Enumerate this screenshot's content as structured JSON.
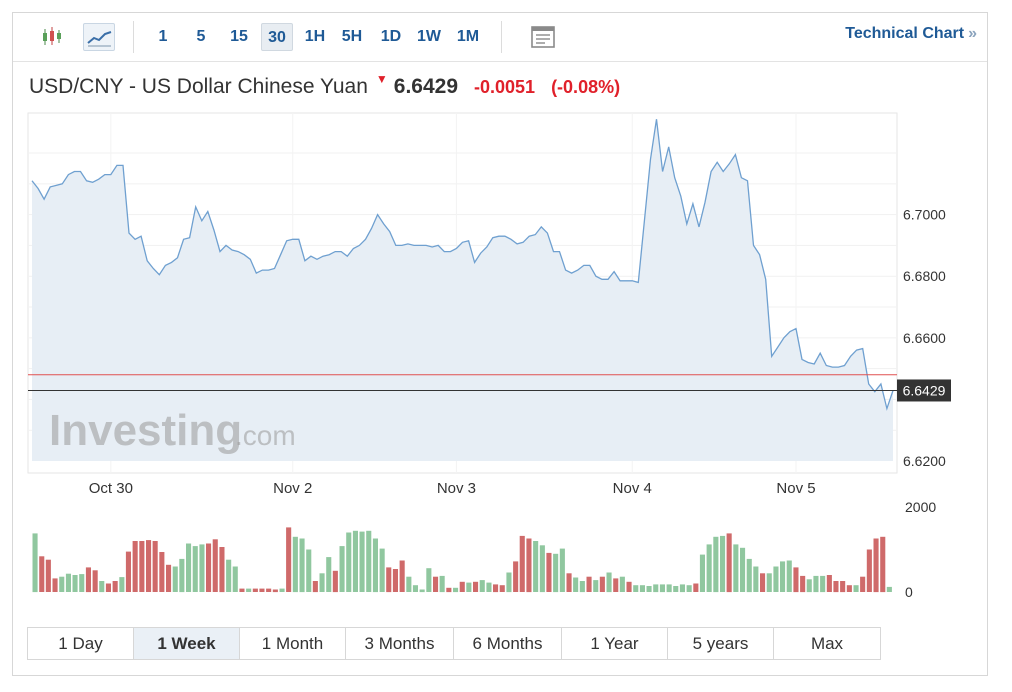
{
  "toolbar": {
    "chart_type_buttons": [
      {
        "name": "candlestick-chart-icon"
      },
      {
        "name": "line-chart-icon",
        "active": true
      }
    ],
    "timeframes": [
      {
        "label": "1"
      },
      {
        "label": "5"
      },
      {
        "label": "15"
      },
      {
        "label": "30",
        "active": true
      },
      {
        "label": "1H"
      },
      {
        "label": "5H"
      },
      {
        "label": "1D"
      },
      {
        "label": "1W"
      },
      {
        "label": "1M"
      }
    ],
    "technical_chart_label": "Technical Chart",
    "technical_chart_arrow": "»"
  },
  "header": {
    "title": "USD/CNY - US Dollar Chinese Yuan",
    "price": "6.6429",
    "change": "-0.0051",
    "change_pct": "(-0.08%)"
  },
  "colors": {
    "line": "#6fa0d0",
    "area": "#e7eef5",
    "up_volume": "#90c79f",
    "down_volume": "#cf6a6a",
    "prev_close_line": "#e05050",
    "current_price_line": "#333333",
    "price_tag_bg": "#333333",
    "accent_text": "#1f5a96",
    "negative": "#e0202a"
  },
  "chart_data": {
    "type": "area",
    "title": "USD/CNY - US Dollar Chinese Yuan",
    "xlabel": "",
    "ylabel": "",
    "x_ticks": [
      "Oct 30",
      "Nov 2",
      "Nov 3",
      "Nov 4",
      "Nov 5"
    ],
    "y_ticks": [
      "6.7000",
      "6.6800",
      "6.6600",
      "6.6200"
    ],
    "ylim": [
      6.62,
      6.733
    ],
    "grid": true,
    "current_price": 6.6429,
    "current_price_label": "6.6429",
    "previous_close": 6.648,
    "watermark": {
      "main": "Investing",
      "suffix": ".com"
    },
    "series": [
      {
        "values": [
          6.711,
          6.7085,
          6.705,
          6.709,
          6.7095,
          6.71,
          6.713,
          6.714,
          6.714,
          6.711,
          6.7105,
          6.7115,
          6.713,
          6.713,
          6.716,
          6.716,
          6.694,
          6.692,
          6.693,
          6.685,
          6.6825,
          6.6805,
          6.6835,
          6.6845,
          6.686,
          6.692,
          6.6925,
          6.7025,
          6.698,
          6.701,
          6.695,
          6.688,
          6.69,
          6.6885,
          6.688,
          6.687,
          6.6855,
          6.681,
          6.682,
          6.682,
          6.6825,
          6.687,
          6.6915,
          6.692,
          6.692,
          6.685,
          6.6865,
          6.6855,
          6.6865,
          6.687,
          6.688,
          6.688,
          6.6865,
          6.689,
          6.69,
          6.692,
          6.6955,
          6.7,
          6.697,
          6.6945,
          6.69,
          6.69,
          6.6905,
          6.69,
          6.69,
          6.69,
          6.6895,
          6.69,
          6.688,
          6.688,
          6.689,
          6.691,
          6.6915,
          6.6845,
          6.6875,
          6.6895,
          6.6925,
          6.693,
          6.693,
          6.692,
          6.6905,
          6.691,
          6.693,
          6.6935,
          6.696,
          6.694,
          6.688,
          6.688,
          6.682,
          6.681,
          6.682,
          6.6835,
          6.6835,
          6.68,
          6.679,
          6.679,
          6.6815,
          6.6785,
          6.6785,
          6.6785,
          6.678,
          6.698,
          6.718,
          6.731,
          6.714,
          6.722,
          6.712,
          6.706,
          6.697,
          6.7035,
          6.696,
          6.704,
          6.714,
          6.717,
          6.714,
          6.7165,
          6.7195,
          6.712,
          6.711,
          6.69,
          6.687,
          6.679,
          6.654,
          6.657,
          6.66,
          6.662,
          6.663,
          6.653,
          6.652,
          6.6515,
          6.655,
          6.651,
          6.6505,
          6.6505,
          6.651,
          6.654,
          6.656,
          6.6565,
          6.645,
          6.6425,
          6.645,
          6.637,
          6.6429
        ]
      }
    ],
    "volume": {
      "ylim": [
        0,
        2000
      ],
      "y_ticks": [
        "2000",
        "0"
      ],
      "values": [
        1380,
        840,
        760,
        320,
        360,
        430,
        400,
        420,
        580,
        510,
        260,
        200,
        260,
        350,
        950,
        1200,
        1200,
        1220,
        1200,
        940,
        640,
        600,
        780,
        1140,
        1080,
        1120,
        1140,
        1240,
        1060,
        760,
        600,
        80,
        80,
        80,
        80,
        80,
        60,
        80,
        1520,
        1300,
        1260,
        1000,
        260,
        440,
        820,
        500,
        1080,
        1400,
        1440,
        1420,
        1440,
        1260,
        1020,
        580,
        540,
        740,
        360,
        160,
        60,
        560,
        360,
        380,
        100,
        100,
        240,
        220,
        240,
        280,
        220,
        180,
        160,
        460,
        720,
        1320,
        1260,
        1200,
        1100,
        920,
        900,
        1020,
        440,
        340,
        260,
        360,
        280,
        360,
        460,
        320,
        360,
        240,
        160,
        160,
        140,
        180,
        180,
        180,
        140,
        180,
        160,
        200,
        880,
        1120,
        1300,
        1320,
        1380,
        1120,
        1040,
        780,
        600,
        440,
        440,
        600,
        720,
        740,
        580,
        380,
        300,
        380,
        380,
        400,
        260,
        260,
        160,
        160,
        360,
        1000,
        1260,
        1300,
        120
      ],
      "directions": [
        "up",
        "down",
        "down",
        "down",
        "up",
        "up",
        "up",
        "up",
        "down",
        "down",
        "up",
        "down",
        "down",
        "up",
        "down",
        "down",
        "down",
        "down",
        "down",
        "down",
        "down",
        "up",
        "up",
        "up",
        "up",
        "up",
        "down",
        "down",
        "down",
        "up",
        "up",
        "down",
        "up",
        "down",
        "down",
        "down",
        "down",
        "up",
        "down",
        "up",
        "up",
        "up",
        "down",
        "up",
        "up",
        "down",
        "up",
        "up",
        "up",
        "up",
        "up",
        "up",
        "up",
        "down",
        "down",
        "down",
        "up",
        "up",
        "up",
        "up",
        "down",
        "up",
        "down",
        "up",
        "down",
        "up",
        "down",
        "up",
        "up",
        "down",
        "down",
        "up",
        "down",
        "down",
        "down",
        "up",
        "up",
        "down",
        "up",
        "up",
        "down",
        "up",
        "up",
        "down",
        "up",
        "down",
        "up",
        "down",
        "up",
        "down",
        "up",
        "up",
        "up",
        "up",
        "up",
        "up",
        "up",
        "up",
        "up",
        "down",
        "up",
        "up",
        "up",
        "up",
        "down",
        "up",
        "up",
        "up",
        "up",
        "down",
        "up",
        "up",
        "up",
        "up",
        "down",
        "down",
        "up",
        "up",
        "up",
        "down",
        "down",
        "down",
        "down",
        "up",
        "down",
        "down",
        "down",
        "down",
        "up"
      ]
    }
  },
  "periods": [
    {
      "label": "1 Day"
    },
    {
      "label": "1 Week",
      "active": true
    },
    {
      "label": "1 Month"
    },
    {
      "label": "3 Months"
    },
    {
      "label": "6 Months"
    },
    {
      "label": "1 Year"
    },
    {
      "label": "5 years"
    },
    {
      "label": "Max"
    }
  ]
}
